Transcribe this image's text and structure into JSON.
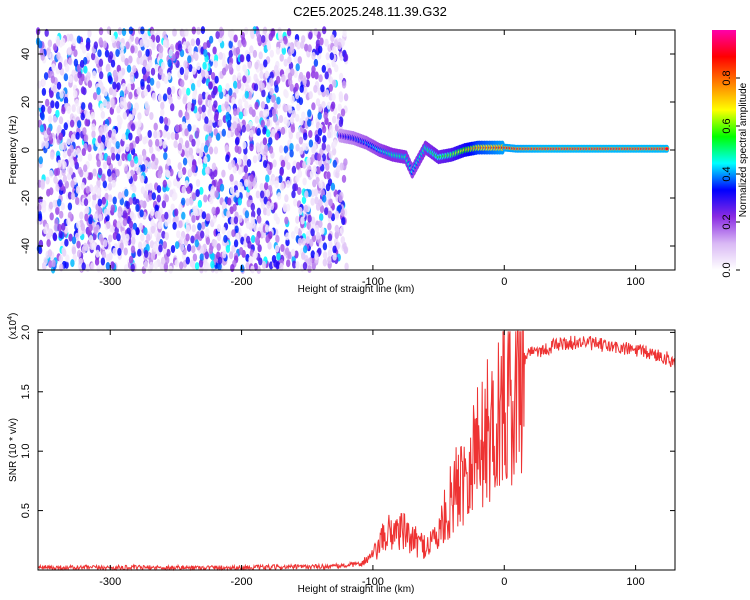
{
  "title": "C2E5.2025.248.11.39.G32",
  "chart_data": [
    {
      "type": "heatmap",
      "xlabel": "Height of straight line (km)",
      "ylabel": "Frequency (Hz)",
      "xlim": [
        -355,
        130
      ],
      "ylim": [
        -50,
        50
      ],
      "x_ticks": [
        "-300",
        "-200",
        "-100",
        "0",
        "100"
      ],
      "y_ticks": [
        "-40",
        "-20",
        "0",
        "20",
        "40"
      ],
      "colorbar": {
        "label": "Normalized spectral amplitude",
        "range": [
          0,
          1
        ],
        "ticks": [
          "0.0",
          "0.2",
          "0.4",
          "0.6",
          "0.8"
        ],
        "colors": [
          "#ffffff",
          "#d9b8f5",
          "#8a2be2",
          "#0000ff",
          "#00ffff",
          "#00ff00",
          "#ffff00",
          "#ff8000",
          "#ff0000",
          "#ff00aa"
        ]
      },
      "noise_region": {
        "x_range": [
          -355,
          -120
        ],
        "freq_range": [
          -50,
          50
        ],
        "amplitude": 0.1
      },
      "signal_track": [
        {
          "x": -125,
          "freq": 6,
          "amp": 0.3
        },
        {
          "x": -115,
          "freq": 5,
          "amp": 0.35
        },
        {
          "x": -105,
          "freq": 3,
          "amp": 0.4
        },
        {
          "x": -95,
          "freq": 0,
          "amp": 0.45
        },
        {
          "x": -85,
          "freq": -2,
          "amp": 0.5
        },
        {
          "x": -75,
          "freq": -3,
          "amp": 0.5
        },
        {
          "x": -70,
          "freq": -9,
          "amp": 0.45
        },
        {
          "x": -60,
          "freq": 1,
          "amp": 0.5
        },
        {
          "x": -50,
          "freq": -3,
          "amp": 0.55
        },
        {
          "x": -40,
          "freq": -2,
          "amp": 0.6
        },
        {
          "x": -30,
          "freq": 0,
          "amp": 0.7
        },
        {
          "x": -20,
          "freq": 1,
          "amp": 0.8
        },
        {
          "x": -10,
          "freq": 1,
          "amp": 0.85
        },
        {
          "x": 0,
          "freq": 1,
          "amp": 0.9
        },
        {
          "x": 10,
          "freq": 0.5,
          "amp": 0.9
        },
        {
          "x": 30,
          "freq": 0.5,
          "amp": 0.92
        },
        {
          "x": 60,
          "freq": 0.5,
          "amp": 0.92
        },
        {
          "x": 90,
          "freq": 0.5,
          "amp": 0.92
        },
        {
          "x": 125,
          "freq": 0.5,
          "amp": 0.92
        }
      ]
    },
    {
      "type": "line",
      "xlabel": "Height of straight line (km)",
      "ylabel": "SNR (10 * v/v)",
      "y_exponent": "(x10",
      "y_exponent_power": "4",
      "y_exponent_close": ")",
      "xlim": [
        -355,
        130
      ],
      "ylim": [
        0,
        2.02
      ],
      "x_ticks": [
        "-300",
        "-200",
        "-100",
        "0",
        "100"
      ],
      "y_ticks": [
        "0.5",
        "1.0",
        "1.5",
        "2.0"
      ],
      "color": "#ee3333",
      "series_envelope": [
        {
          "x": -355,
          "y": 0.02
        },
        {
          "x": -300,
          "y": 0.02
        },
        {
          "x": -200,
          "y": 0.02
        },
        {
          "x": -130,
          "y": 0.03
        },
        {
          "x": -110,
          "y": 0.05
        },
        {
          "x": -100,
          "y": 0.12
        },
        {
          "x": -90,
          "y": 0.3
        },
        {
          "x": -80,
          "y": 0.35
        },
        {
          "x": -70,
          "y": 0.25
        },
        {
          "x": -60,
          "y": 0.2
        },
        {
          "x": -50,
          "y": 0.3
        },
        {
          "x": -40,
          "y": 0.6
        },
        {
          "x": -30,
          "y": 0.85
        },
        {
          "x": -20,
          "y": 1.05
        },
        {
          "x": -10,
          "y": 1.2
        },
        {
          "x": 0,
          "y": 1.4
        },
        {
          "x": 10,
          "y": 1.7
        },
        {
          "x": 20,
          "y": 1.85
        },
        {
          "x": 30,
          "y": 1.85
        },
        {
          "x": 40,
          "y": 1.9
        },
        {
          "x": 60,
          "y": 1.92
        },
        {
          "x": 80,
          "y": 1.88
        },
        {
          "x": 100,
          "y": 1.85
        },
        {
          "x": 120,
          "y": 1.8
        },
        {
          "x": 130,
          "y": 1.75
        }
      ]
    }
  ]
}
